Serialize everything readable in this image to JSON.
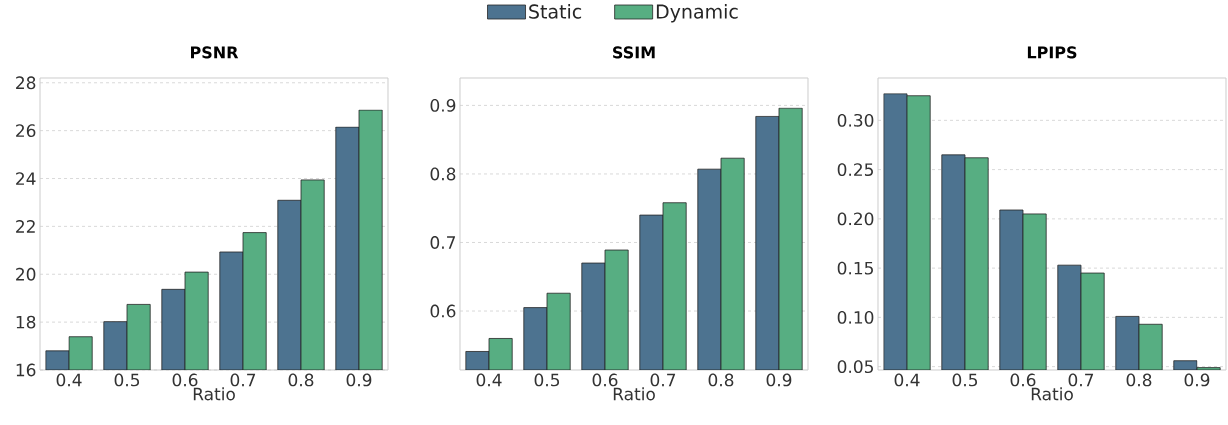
{
  "chart_data": [
    {
      "type": "bar",
      "title": "PSNR",
      "xlabel": "Ratio",
      "categories": [
        "0.4",
        "0.5",
        "0.6",
        "0.7",
        "0.8",
        "0.9"
      ],
      "series": [
        {
          "name": "Static",
          "color": "#4d7390",
          "values": [
            16.8,
            18.02,
            19.37,
            20.93,
            23.09,
            26.15
          ]
        },
        {
          "name": "Dynamic",
          "color": "#57ae82",
          "values": [
            17.39,
            18.74,
            20.09,
            21.74,
            23.94,
            26.86
          ]
        }
      ],
      "ylim": [
        16,
        28.2
      ],
      "yticks": [
        16,
        18,
        20,
        22,
        24,
        26,
        28
      ],
      "grid": "y",
      "legend": "top"
    },
    {
      "type": "bar",
      "title": "SSIM",
      "xlabel": "Ratio",
      "categories": [
        "0.4",
        "0.5",
        "0.6",
        "0.7",
        "0.8",
        "0.9"
      ],
      "series": [
        {
          "color": "#4d7390",
          "values": [
            0.541,
            0.605,
            0.67,
            0.74,
            0.807,
            0.884
          ]
        },
        {
          "color": "#57ae82",
          "values": [
            0.56,
            0.626,
            0.689,
            0.758,
            0.823,
            0.896
          ]
        }
      ],
      "ylim": [
        0.514,
        0.94
      ],
      "yticks": [
        0.6,
        0.7,
        0.8,
        0.9
      ],
      "grid": "y"
    },
    {
      "type": "bar",
      "title": "LPIPS",
      "xlabel": "Ratio",
      "categories": [
        "0.4",
        "0.5",
        "0.6",
        "0.7",
        "0.8",
        "0.9"
      ],
      "series": [
        {
          "color": "#4d7390",
          "values": [
            0.327,
            0.265,
            0.209,
            0.153,
            0.101,
            0.056
          ]
        },
        {
          "color": "#57ae82",
          "values": [
            0.325,
            0.262,
            0.205,
            0.145,
            0.093,
            0.049
          ]
        }
      ],
      "ylim": [
        0.0466,
        0.343
      ],
      "yticks": [
        {
          "value": 0.05,
          "label": "0.05"
        },
        {
          "value": 0.1,
          "label": "0.10"
        },
        {
          "value": 0.15,
          "label": "0.15"
        },
        {
          "value": 0.2,
          "label": "0.20"
        },
        {
          "value": 0.25,
          "label": "0.25"
        },
        {
          "value": 0.3,
          "label": "0.30"
        }
      ],
      "grid": "y"
    }
  ]
}
